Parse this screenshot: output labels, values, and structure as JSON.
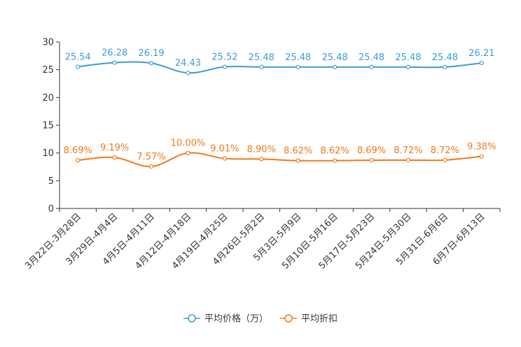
{
  "chart_data": {
    "type": "line",
    "categories": [
      "3月22日-3月28日",
      "3月29日-4月4日",
      "4月5日-4月11日",
      "4月12日-4月18日",
      "4月19日-4月25日",
      "4月26日-5月2日",
      "5月3日-5月9日",
      "5月10日-5月16日",
      "5月17日-5月23日",
      "5月24日-5月30日",
      "5月31日-6月6日",
      "6月7日-6月13日"
    ],
    "ylim": [
      0,
      30
    ],
    "yticks": [
      "0",
      "5",
      "10",
      "15",
      "20",
      "25",
      "30"
    ],
    "series": [
      {
        "name": "平均价格（万）",
        "color": "#3c9ed1",
        "values": [
          25.54,
          26.28,
          26.19,
          24.43,
          25.52,
          25.48,
          25.48,
          25.48,
          25.48,
          25.48,
          25.48,
          26.21
        ],
        "labels": [
          "25.54",
          "26.28",
          "26.19",
          "24.43",
          "25.52",
          "25.48",
          "25.48",
          "25.48",
          "25.48",
          "25.48",
          "25.48",
          "26.21"
        ]
      },
      {
        "name": "平均折扣",
        "color": "#f07a1a",
        "values": [
          8.69,
          9.19,
          7.57,
          10.0,
          9.01,
          8.9,
          8.62,
          8.62,
          8.69,
          8.72,
          8.72,
          9.38
        ],
        "labels": [
          "8.69%",
          "9.19%",
          "7.57%",
          "10.00%",
          "9.01%",
          "8.90%",
          "8.62%",
          "8.62%",
          "8.69%",
          "8.72%",
          "8.72%",
          "9.38%"
        ]
      }
    ],
    "legend_position": "bottom-center"
  }
}
